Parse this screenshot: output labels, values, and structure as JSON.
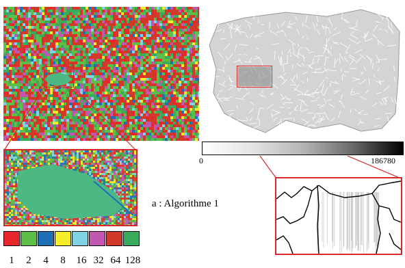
{
  "colorbar": {
    "min_label": "0",
    "max_label": "186780"
  },
  "caption": "a : Algorithme 1",
  "legend": {
    "items": [
      {
        "label": "1",
        "color": "#e8262b"
      },
      {
        "label": "2",
        "color": "#5fbe47"
      },
      {
        "label": "4",
        "color": "#1f6fb5"
      },
      {
        "label": "8",
        "color": "#f5ec2a"
      },
      {
        "label": "16",
        "color": "#7fd3e4"
      },
      {
        "label": "32",
        "color": "#c257b0"
      },
      {
        "label": "64",
        "color": "#d13a2a"
      },
      {
        "label": "128",
        "color": "#3aab5c"
      }
    ]
  },
  "colors": {
    "highlight": "#d8262b",
    "flow_base": "#6d8a3c",
    "lake": "#4cb884"
  }
}
